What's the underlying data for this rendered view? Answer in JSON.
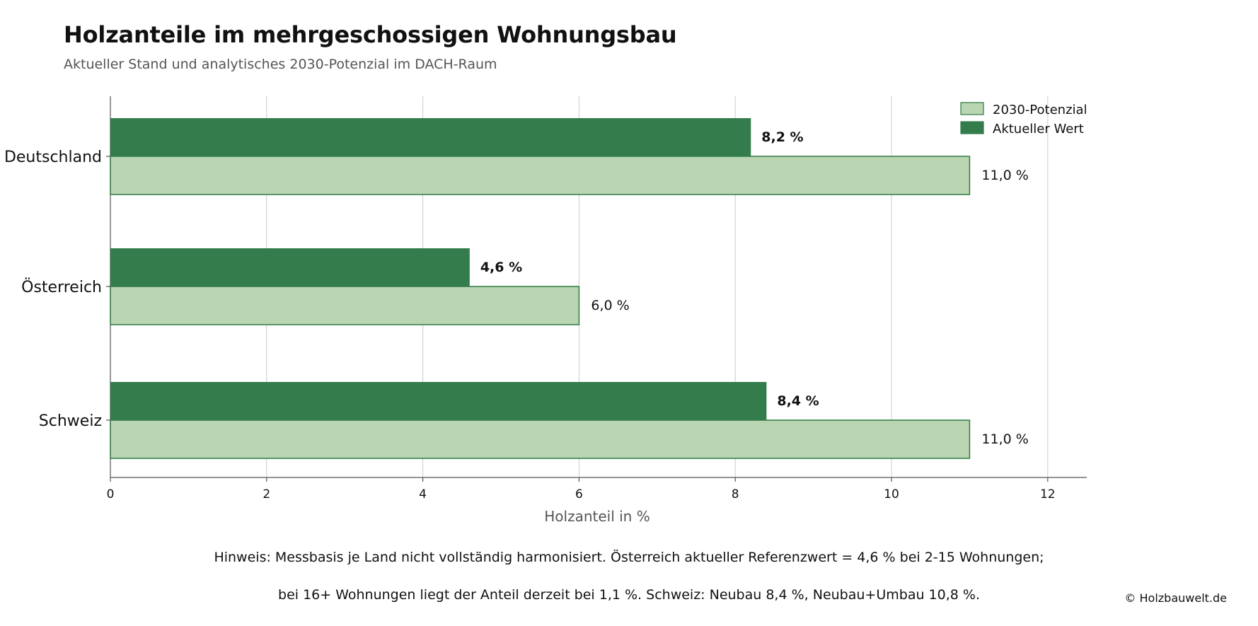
{
  "title": "Holzanteile im mehrgeschossigen Wohnungsbau",
  "subtitle": "Aktueller Stand und analytisches 2030-Potenzial im DACH-Raum",
  "notes": [
    "Hinweis: Messbasis je Land nicht vollständig harmonisiert. Österreich aktueller Referenzwert = 4,6 % bei 2-15 Wohnungen;",
    "bei 16+ Wohnungen liegt der Anteil derzeit bei 1,1 %. Schweiz: Neubau 8,4 %, Neubau+Umbau 10,8 %."
  ],
  "copyright": "© Holzbauwelt.de",
  "colors": {
    "current": "#357c4c",
    "potential": "#bad5b2",
    "potential_edge": "#2f7a43",
    "grid": "#cccccc",
    "axis": "#555555"
  },
  "chart_data": {
    "type": "bar",
    "orientation": "horizontal",
    "categories": [
      "Deutschland",
      "Österreich",
      "Schweiz"
    ],
    "series": [
      {
        "name": "Aktueller Wert",
        "values": [
          8.2,
          4.6,
          8.4
        ],
        "labels": [
          "8,2 %",
          "4,6 %",
          "8,4 %"
        ]
      },
      {
        "name": "2030-Potenzial",
        "values": [
          11.0,
          6.0,
          11.0
        ],
        "labels": [
          "11,0 %",
          "6,0 %",
          "11,0 %"
        ]
      }
    ],
    "xlabel": "Holzanteil in %",
    "ylabel": "",
    "xlim": [
      0,
      12.5
    ],
    "xticks": [
      0,
      2,
      4,
      6,
      8,
      10,
      12
    ],
    "grid": "vertical",
    "legend": {
      "position": "top-right",
      "entries": [
        "2030-Potenzial",
        "Aktueller Wert"
      ]
    }
  }
}
